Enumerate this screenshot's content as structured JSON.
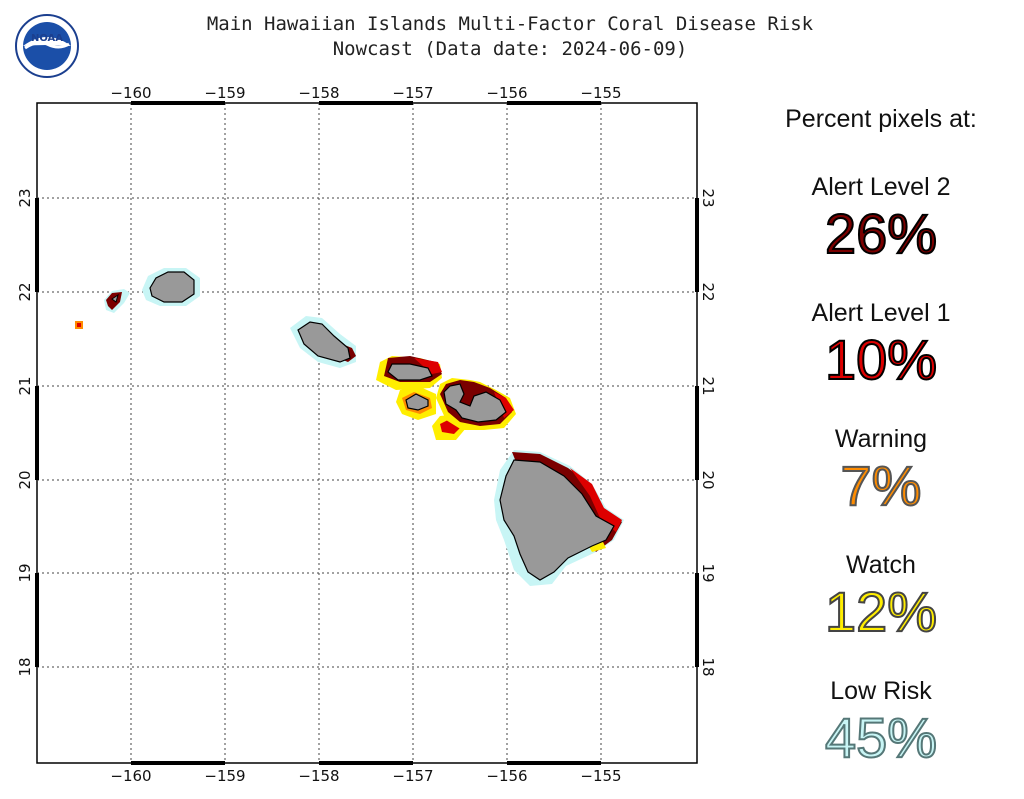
{
  "header": {
    "logo_text": "NOAA",
    "title_line1": "Main Hawaiian Islands Multi-Factor Coral Disease Risk",
    "title_line2": "Nowcast (Data date: 2024-06-09)"
  },
  "map": {
    "lon_ticks": [
      "−160",
      "−159",
      "−158",
      "−157",
      "−156",
      "−155"
    ],
    "lat_ticks": [
      "18",
      "19",
      "20",
      "21",
      "22",
      "23"
    ],
    "colors": {
      "land": "#999999",
      "alert2": "#7a0000",
      "alert1": "#dd0000",
      "warning": "#ff8c00",
      "watch": "#ffee00",
      "low": "#c8f5f5"
    }
  },
  "legend": {
    "heading": "Percent pixels at:",
    "levels": [
      {
        "label": "Alert Level 2",
        "value": "26%",
        "color": "#7a0000",
        "stroke": "#000000"
      },
      {
        "label": "Alert Level 1",
        "value": "10%",
        "color": "#dd0000",
        "stroke": "#000000"
      },
      {
        "label": "Warning",
        "value": "7%",
        "color": "#ff8c00",
        "stroke": "#555555"
      },
      {
        "label": "Watch",
        "value": "12%",
        "color": "#ffee00",
        "stroke": "#444444"
      },
      {
        "label": "Low Risk",
        "value": "45%",
        "color": "#c8f5f5",
        "stroke": "#557777"
      }
    ]
  }
}
